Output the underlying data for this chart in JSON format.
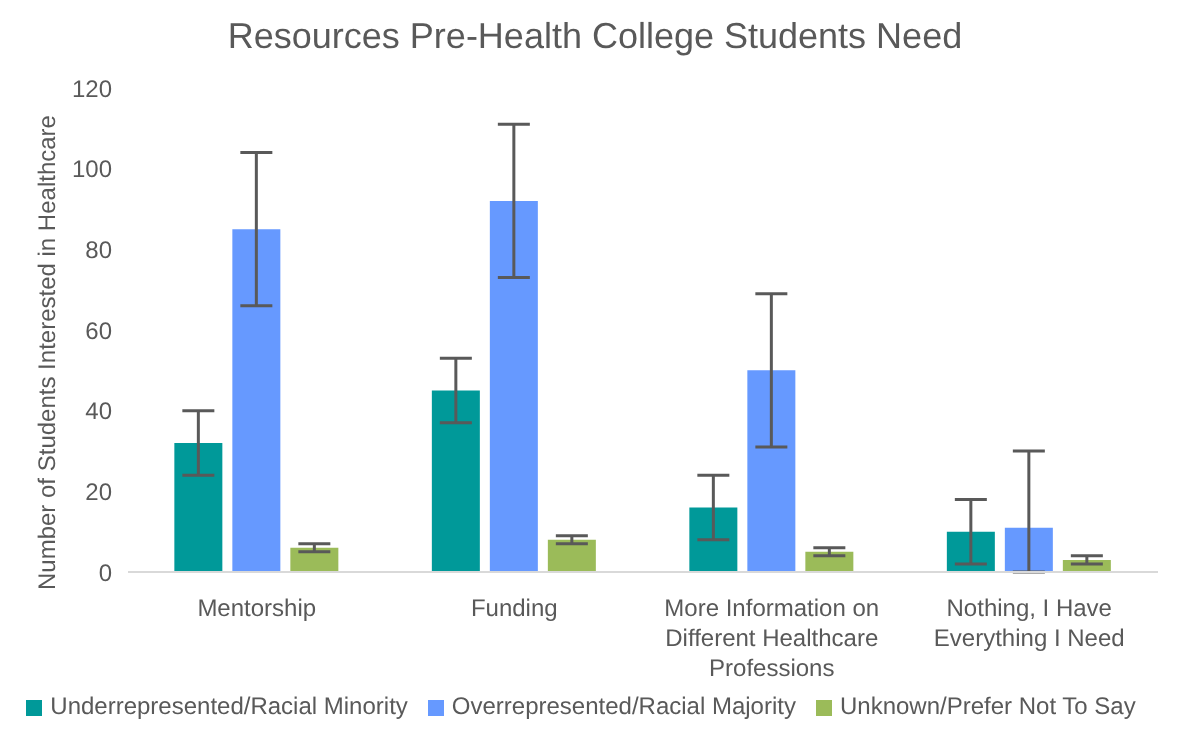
{
  "chart_data": {
    "type": "bar",
    "title": "Resources Pre-Health College Students Need",
    "ylabel": "Number  of Students Interested in Healthcare",
    "categories": [
      "Mentorship",
      "Funding",
      "More Information on Different Healthcare Professions",
      "Nothing, I Have Everything I Need"
    ],
    "series": [
      {
        "name": "Underrepresented/Racial Minority",
        "color": "#009999",
        "values": [
          32,
          45,
          16,
          10
        ],
        "errors": [
          8,
          8,
          8,
          8
        ]
      },
      {
        "name": "Overrepresented/Racial Majority",
        "color": "#6699ff",
        "values": [
          85,
          92,
          50,
          11
        ],
        "errors": [
          19,
          19,
          19,
          [
            0,
            30
          ]
        ]
      },
      {
        "name": "Unknown/Prefer Not To Say",
        "color": "#9bbb59",
        "values": [
          6,
          8,
          5,
          3
        ],
        "errors": [
          1,
          1,
          1,
          1
        ]
      }
    ],
    "ylim": [
      0,
      120
    ],
    "yticks": [
      0,
      20,
      40,
      60,
      80,
      100,
      120
    ],
    "grid": false,
    "legend": "bottom"
  }
}
